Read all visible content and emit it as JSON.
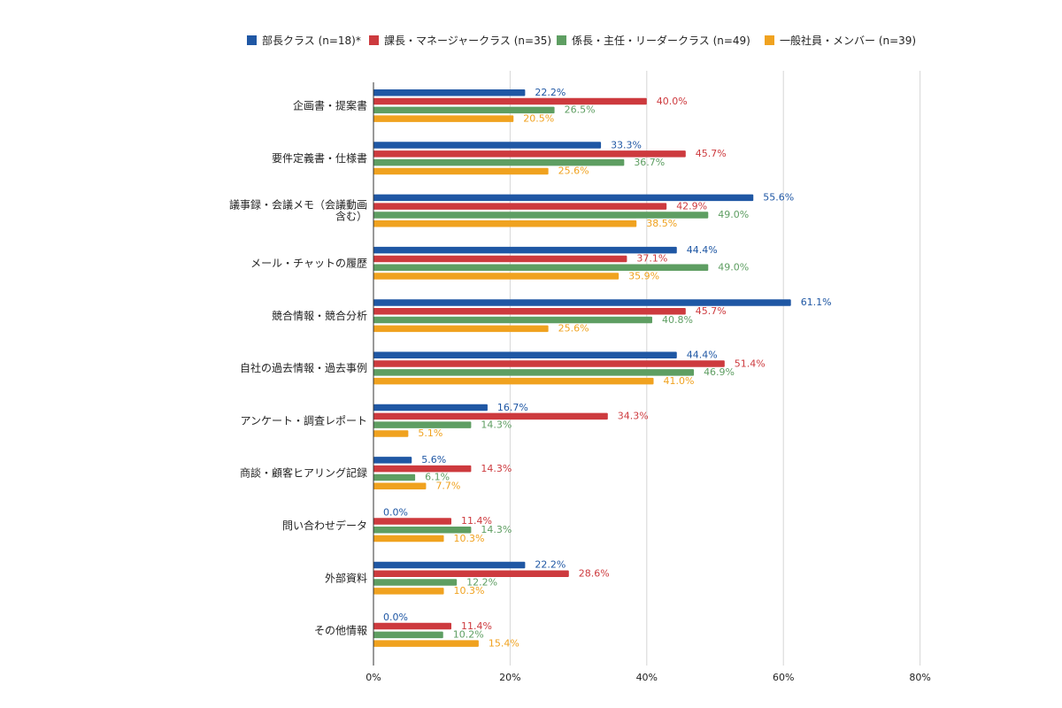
{
  "chart_data": {
    "type": "bar",
    "orientation": "horizontal",
    "categories": [
      [
        "企画書・提案書"
      ],
      [
        "要件定義書・仕様書"
      ],
      [
        "議事録・会議メモ（会議動画",
        "含む）"
      ],
      [
        "メール・チャットの履歴"
      ],
      [
        "競合情報・競合分析"
      ],
      [
        "自社の過去情報・過去事例"
      ],
      [
        "アンケート・調査レポート"
      ],
      [
        "商談・顧客ヒアリング記録"
      ],
      [
        "問い合わせデータ"
      ],
      [
        "外部資料"
      ],
      [
        "その他情報"
      ]
    ],
    "series": [
      {
        "name": "部長クラス (n=18)*",
        "color": "#1f57a4",
        "values": [
          22.2,
          33.3,
          55.6,
          44.4,
          61.1,
          44.4,
          16.7,
          5.6,
          0.0,
          22.2,
          0.0
        ]
      },
      {
        "name": "課長・マネージャークラス (n=35)",
        "color": "#cd3a3e",
        "values": [
          40.0,
          45.7,
          42.9,
          37.1,
          45.7,
          51.4,
          34.3,
          14.3,
          11.4,
          28.6,
          11.4
        ]
      },
      {
        "name": "係長・主任・リーダークラス (n=49)",
        "color": "#5e9e62",
        "values": [
          26.5,
          36.7,
          49.0,
          49.0,
          40.8,
          46.9,
          14.3,
          6.1,
          14.3,
          12.2,
          10.2
        ]
      },
      {
        "name": "一般社員・メンバー (n=39)",
        "color": "#f0a21f",
        "values": [
          20.5,
          25.6,
          38.5,
          35.9,
          25.6,
          41.0,
          5.1,
          7.7,
          10.3,
          10.3,
          15.4
        ]
      }
    ],
    "xlim": [
      0,
      80
    ],
    "xticks": [
      0,
      20,
      40,
      60,
      80
    ],
    "tick_suffix": "%",
    "value_suffix": "%",
    "legend_position": "top",
    "grid": true
  }
}
